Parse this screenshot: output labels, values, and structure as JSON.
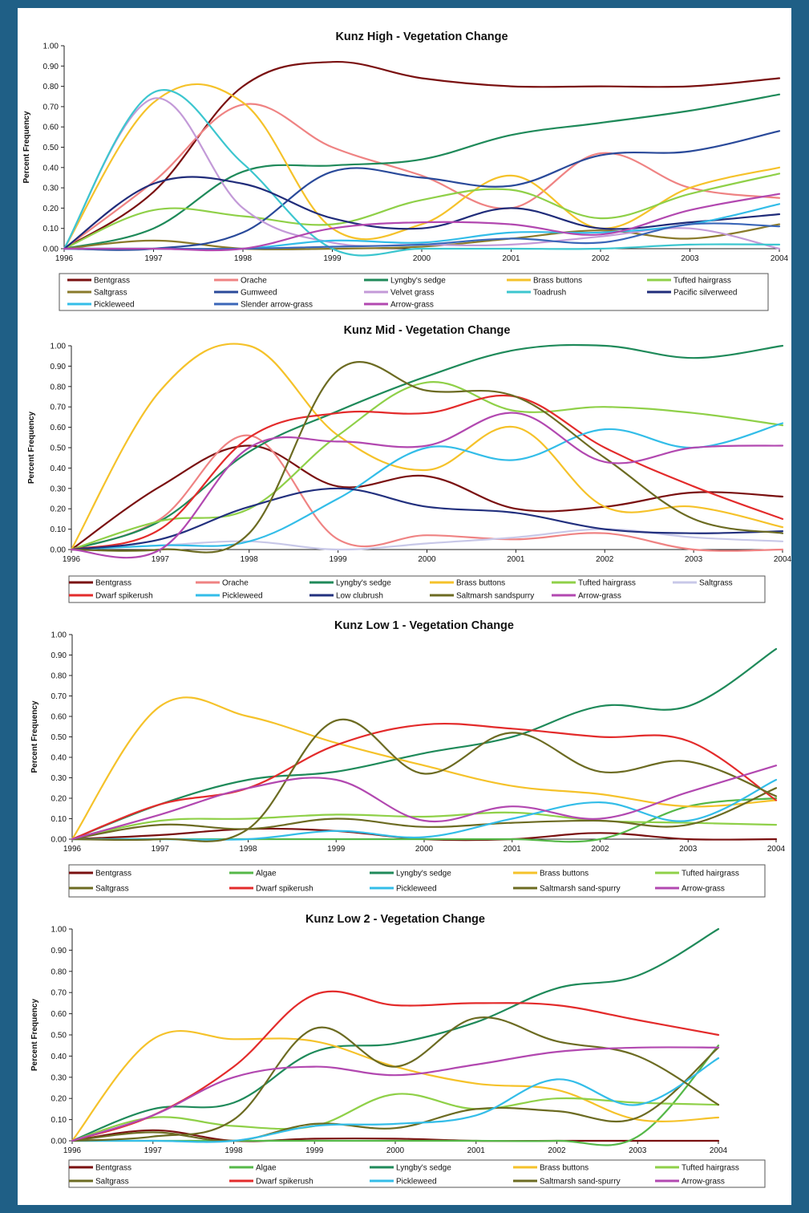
{
  "colors": {
    "Bentgrass": "#7a1010",
    "Orache": "#ef8383",
    "Lyngby's sedge": "#1f8a5a",
    "Brass buttons": "#f5c22a",
    "Tufted hairgrass": "#8fd048",
    "Saltgrass": "#8a7a2a",
    "Gumweed": "#2a4a9a",
    "Velvet grass": "#c39ad8",
    "Toadrush": "#3cc6cf",
    "Pacific silverweed": "#202c7a",
    "Pickleweed": "#33bde8",
    "Slender arrow-grass": "#3a66b8",
    "Arrow-grass": "#b248b0",
    "Dwarf spikerush": "#e32b2b",
    "Low clubrush": "#22307e",
    "Saltmarsh sandspurry": "#6c6b22",
    "Saltmarsh sand-spurry": "#6c6b22",
    "Algae": "#55b848",
    "Saltgrass_mid": "#c8c8e8",
    "Saltgrass_low": "#6c6b22"
  },
  "chart_data": [
    {
      "type": "line",
      "title": "Kunz High - Vegetation Change",
      "ylabel": "Percent Frequency",
      "xlabel": "",
      "ylim": [
        0,
        1
      ],
      "yticks": [
        "0.00",
        "0.10",
        "0.20",
        "0.30",
        "0.40",
        "0.50",
        "0.60",
        "0.70",
        "0.80",
        "0.90",
        "1.00"
      ],
      "xticks": [
        "1996",
        "1997",
        "1998",
        "1999",
        "2000",
        "2001",
        "2002",
        "2003",
        "2004"
      ],
      "x": [
        1996,
        1997,
        1998,
        1999,
        2000,
        2001,
        2002,
        2003,
        2004
      ],
      "series": [
        {
          "name": "Bentgrass",
          "values": [
            0,
            0.28,
            0.8,
            0.92,
            0.84,
            0.8,
            0.8,
            0.8,
            0.84
          ]
        },
        {
          "name": "Orache",
          "values": [
            0,
            0.33,
            0.71,
            0.5,
            0.36,
            0.2,
            0.47,
            0.3,
            0.25
          ]
        },
        {
          "name": "Lyngby's sedge",
          "values": [
            0,
            0.1,
            0.38,
            0.41,
            0.44,
            0.56,
            0.62,
            0.68,
            0.76
          ]
        },
        {
          "name": "Brass buttons",
          "values": [
            0,
            0.72,
            0.72,
            0.1,
            0.12,
            0.36,
            0.1,
            0.3,
            0.4
          ]
        },
        {
          "name": "Tufted hairgrass",
          "values": [
            0,
            0.19,
            0.16,
            0.12,
            0.24,
            0.29,
            0.15,
            0.27,
            0.37
          ]
        },
        {
          "name": "Saltgrass",
          "values": [
            0,
            0.04,
            0.0,
            0.0,
            0.01,
            0.05,
            0.09,
            0.05,
            0.12
          ]
        },
        {
          "name": "Gumweed",
          "values": [
            0,
            0.0,
            0.08,
            0.38,
            0.35,
            0.31,
            0.46,
            0.48,
            0.58
          ]
        },
        {
          "name": "Velvet grass",
          "values": [
            0,
            0.74,
            0.2,
            0.03,
            0.02,
            0.02,
            0.06,
            0.1,
            0.0
          ]
        },
        {
          "name": "Toadrush",
          "values": [
            0,
            0.77,
            0.42,
            0.0,
            0.0,
            0.0,
            0.0,
            0.02,
            0.02
          ]
        },
        {
          "name": "Pacific silverweed",
          "values": [
            0,
            0.32,
            0.32,
            0.15,
            0.1,
            0.2,
            0.1,
            0.13,
            0.17
          ]
        },
        {
          "name": "Pickleweed",
          "values": [
            0,
            0.0,
            0.0,
            0.04,
            0.03,
            0.08,
            0.08,
            0.12,
            0.22
          ]
        },
        {
          "name": "Slender arrow-grass",
          "values": [
            0,
            0.0,
            0.0,
            0.01,
            0.02,
            0.05,
            0.03,
            0.12,
            0.11
          ]
        },
        {
          "name": "Arrow-grass",
          "values": [
            0,
            0.0,
            0.0,
            0.1,
            0.13,
            0.12,
            0.07,
            0.19,
            0.27
          ]
        }
      ],
      "legend_rows": [
        [
          "Bentgrass",
          "Orache",
          "Lyngby's sedge",
          "Brass buttons",
          "Tufted hairgrass"
        ],
        [
          "Saltgrass",
          "Gumweed",
          "Velvet grass",
          "Toadrush",
          "Pacific silverweed"
        ],
        [
          "Pickleweed",
          "Slender arrow-grass",
          "Arrow-grass"
        ]
      ],
      "legend_labels": [
        [
          "Bentgrass",
          "Orache",
          "Lyngby's sedge",
          "Brass buttons",
          "Tufted hairgrass"
        ],
        [
          "Saltgrass",
          "Gumweed",
          "Velvet grass",
          "Toadrush",
          "Pacific silverweed"
        ],
        [
          "Pickleweed",
          "Slender arrow-grass",
          "Arrow-grass"
        ]
      ],
      "legend_placement": "bottom",
      "grid": false
    },
    {
      "type": "line",
      "title": "Kunz Mid - Vegetation Change",
      "ylabel": "Percent Frequency",
      "xlabel": "",
      "ylim": [
        0,
        1
      ],
      "yticks": [
        "0.00",
        "0.10",
        "0.20",
        "0.30",
        "0.40",
        "0.50",
        "0.60",
        "0.70",
        "0.80",
        "0.90",
        "1.00"
      ],
      "xticks": [
        "1996",
        "1997",
        "1998",
        "1999",
        "2000",
        "2001",
        "2002",
        "2003",
        "2004"
      ],
      "x": [
        1996,
        1997,
        1998,
        1999,
        2000,
        2001,
        2002,
        2003,
        2004
      ],
      "series": [
        {
          "name": "Bentgrass",
          "values": [
            0,
            0.31,
            0.51,
            0.31,
            0.36,
            0.2,
            0.21,
            0.28,
            0.26
          ]
        },
        {
          "name": "Orache",
          "values": [
            0,
            0.15,
            0.56,
            0.05,
            0.07,
            0.05,
            0.08,
            0.0,
            0.0
          ]
        },
        {
          "name": "Lyngby's sedge",
          "values": [
            0,
            0.14,
            0.48,
            0.68,
            0.85,
            0.98,
            1.0,
            0.94,
            1.0
          ]
        },
        {
          "name": "Brass buttons",
          "values": [
            0,
            0.78,
            1.0,
            0.56,
            0.39,
            0.6,
            0.21,
            0.21,
            0.11
          ]
        },
        {
          "name": "Tufted hairgrass",
          "values": [
            0,
            0.14,
            0.2,
            0.56,
            0.82,
            0.68,
            0.7,
            0.67,
            0.61
          ]
        },
        {
          "name": "Saltgrass_mid",
          "label": "Saltgrass",
          "values": [
            0,
            0.02,
            0.04,
            0.0,
            0.03,
            0.06,
            0.1,
            0.06,
            0.04
          ]
        },
        {
          "name": "Dwarf spikerush",
          "values": [
            0,
            0.1,
            0.55,
            0.67,
            0.67,
            0.75,
            0.5,
            0.31,
            0.15
          ]
        },
        {
          "name": "Pickleweed",
          "values": [
            0,
            0.02,
            0.04,
            0.25,
            0.5,
            0.44,
            0.59,
            0.5,
            0.62
          ]
        },
        {
          "name": "Low clubrush",
          "values": [
            0,
            0.05,
            0.21,
            0.3,
            0.21,
            0.18,
            0.1,
            0.08,
            0.09
          ]
        },
        {
          "name": "Saltmarsh sandspurry",
          "values": [
            0,
            0.0,
            0.08,
            0.88,
            0.78,
            0.75,
            0.45,
            0.15,
            0.08
          ]
        },
        {
          "name": "Arrow-grass",
          "values": [
            0,
            0.0,
            0.5,
            0.53,
            0.51,
            0.67,
            0.43,
            0.5,
            0.51
          ]
        }
      ],
      "legend_rows": [
        [
          "Bentgrass",
          "Orache",
          "Lyngby's sedge",
          "Brass buttons",
          "Tufted hairgrass",
          "Saltgrass_mid"
        ],
        [
          "Dwarf spikerush",
          "Pickleweed",
          "Low clubrush",
          "Saltmarsh sandspurry",
          "Arrow-grass"
        ]
      ],
      "legend_labels": [
        [
          "Bentgrass",
          "Orache",
          "Lyngby's sedge",
          "Brass buttons",
          "Tufted hairgrass",
          "Saltgrass"
        ],
        [
          "Dwarf spikerush",
          "Pickleweed",
          "Low clubrush",
          "Saltmarsh sandspurry",
          "Arrow-grass"
        ]
      ],
      "legend_placement": "bottom",
      "grid": false
    },
    {
      "type": "line",
      "title": "Kunz Low 1 - Vegetation Change",
      "ylabel": "Percent Frequency",
      "xlabel": "",
      "ylim": [
        0,
        1
      ],
      "yticks": [
        "0.00",
        "0.10",
        "0.20",
        "0.30",
        "0.40",
        "0.50",
        "0.60",
        "0.70",
        "0.80",
        "0.90",
        "1.00"
      ],
      "xticks": [
        "1996",
        "1997",
        "1998",
        "1999",
        "2000",
        "2001",
        "2002",
        "2003",
        "2004"
      ],
      "x": [
        1996,
        1997,
        1998,
        1999,
        2000,
        2001,
        2002,
        2003,
        2004
      ],
      "series": [
        {
          "name": "Bentgrass",
          "values": [
            0,
            0.02,
            0.05,
            0.04,
            0.0,
            0.0,
            0.03,
            0.0,
            0.0
          ]
        },
        {
          "name": "Algae",
          "values": [
            0,
            0.0,
            0.0,
            0.0,
            0.0,
            0.0,
            0.0,
            0.16,
            0.2
          ]
        },
        {
          "name": "Lyngby's sedge",
          "values": [
            0,
            0.17,
            0.29,
            0.33,
            0.42,
            0.5,
            0.65,
            0.65,
            0.93
          ]
        },
        {
          "name": "Brass buttons",
          "values": [
            0,
            0.65,
            0.6,
            0.47,
            0.36,
            0.26,
            0.22,
            0.16,
            0.19
          ]
        },
        {
          "name": "Tufted hairgrass",
          "values": [
            0,
            0.09,
            0.1,
            0.12,
            0.11,
            0.13,
            0.09,
            0.08,
            0.07
          ]
        },
        {
          "name": "Saltgrass_low",
          "label": "Saltgrass",
          "values": [
            0,
            0.07,
            0.05,
            0.1,
            0.06,
            0.08,
            0.09,
            0.07,
            0.25
          ]
        },
        {
          "name": "Dwarf spikerush",
          "values": [
            0,
            0.17,
            0.25,
            0.46,
            0.56,
            0.54,
            0.5,
            0.48,
            0.19
          ]
        },
        {
          "name": "Pickleweed",
          "values": [
            0,
            0.0,
            0.0,
            0.04,
            0.01,
            0.1,
            0.18,
            0.09,
            0.29
          ]
        },
        {
          "name": "Saltmarsh sand-spurry",
          "values": [
            0,
            0.0,
            0.05,
            0.58,
            0.32,
            0.52,
            0.33,
            0.38,
            0.21
          ]
        },
        {
          "name": "Arrow-grass",
          "values": [
            0,
            0.12,
            0.25,
            0.29,
            0.09,
            0.16,
            0.1,
            0.23,
            0.36
          ]
        }
      ],
      "legend_rows": [
        [
          "Bentgrass",
          "Algae",
          "Lyngby's sedge",
          "Brass buttons",
          "Tufted hairgrass"
        ],
        [
          "Saltgrass_low",
          "Dwarf spikerush",
          "Pickleweed",
          "Saltmarsh sand-spurry",
          "Arrow-grass"
        ]
      ],
      "legend_labels": [
        [
          "Bentgrass",
          "Algae",
          "Lyngby's sedge",
          "Brass buttons",
          "Tufted hairgrass"
        ],
        [
          "Saltgrass",
          "Dwarf spikerush",
          "Pickleweed",
          "Saltmarsh sand-spurry",
          "Arrow-grass"
        ]
      ],
      "legend_placement": "bottom",
      "grid": false
    },
    {
      "type": "line",
      "title": "Kunz Low 2 - Vegetation Change",
      "ylabel": "Percent Frequency",
      "xlabel": "",
      "ylim": [
        0,
        1
      ],
      "yticks": [
        "0.00",
        "0.10",
        "0.20",
        "0.30",
        "0.40",
        "0.50",
        "0.60",
        "0.70",
        "0.80",
        "0.90",
        "1.00"
      ],
      "xticks": [
        "1996",
        "1997",
        "1998",
        "1999",
        "2000",
        "2001",
        "2002",
        "2003",
        "2004"
      ],
      "x": [
        1996,
        1997,
        1998,
        1999,
        2000,
        2001,
        2002,
        2003,
        2004
      ],
      "series": [
        {
          "name": "Bentgrass",
          "values": [
            0,
            0.05,
            0.0,
            0.01,
            0.01,
            0.0,
            0.0,
            0.0,
            0.0
          ]
        },
        {
          "name": "Algae",
          "values": [
            0,
            0.0,
            0.0,
            0.0,
            0.0,
            0.0,
            0.0,
            0.02,
            0.45
          ]
        },
        {
          "name": "Lyngby's sedge",
          "values": [
            0,
            0.15,
            0.18,
            0.42,
            0.46,
            0.56,
            0.72,
            0.78,
            1.0
          ]
        },
        {
          "name": "Brass buttons",
          "values": [
            0,
            0.48,
            0.48,
            0.47,
            0.35,
            0.27,
            0.24,
            0.1,
            0.11
          ]
        },
        {
          "name": "Tufted hairgrass",
          "values": [
            0,
            0.11,
            0.07,
            0.07,
            0.22,
            0.15,
            0.2,
            0.18,
            0.17
          ]
        },
        {
          "name": "Saltgrass_low",
          "label": "Saltgrass",
          "values": [
            0,
            0.04,
            0.0,
            0.08,
            0.06,
            0.15,
            0.14,
            0.11,
            0.44
          ]
        },
        {
          "name": "Dwarf spikerush",
          "values": [
            0,
            0.12,
            0.35,
            0.69,
            0.64,
            0.65,
            0.64,
            0.57,
            0.5
          ]
        },
        {
          "name": "Pickleweed",
          "values": [
            0,
            0.0,
            0.0,
            0.07,
            0.08,
            0.12,
            0.29,
            0.17,
            0.39
          ]
        },
        {
          "name": "Saltmarsh sand-spurry",
          "values": [
            0,
            0.02,
            0.1,
            0.53,
            0.35,
            0.58,
            0.47,
            0.4,
            0.17
          ]
        },
        {
          "name": "Arrow-grass",
          "values": [
            0,
            0.12,
            0.3,
            0.35,
            0.31,
            0.36,
            0.42,
            0.44,
            0.44
          ]
        }
      ],
      "legend_rows": [
        [
          "Bentgrass",
          "Algae",
          "Lyngby's sedge",
          "Brass buttons",
          "Tufted hairgrass"
        ],
        [
          "Saltgrass_low",
          "Dwarf spikerush",
          "Pickleweed",
          "Saltmarsh sand-spurry",
          "Arrow-grass"
        ]
      ],
      "legend_labels": [
        [
          "Bentgrass",
          "Algae",
          "Lyngby's sedge",
          "Brass buttons",
          "Tufted hairgrass"
        ],
        [
          "Saltgrass",
          "Dwarf spikerush",
          "Pickleweed",
          "Saltmarsh sand-spurry",
          "Arrow-grass"
        ]
      ],
      "legend_placement": "bottom",
      "grid": false
    }
  ]
}
